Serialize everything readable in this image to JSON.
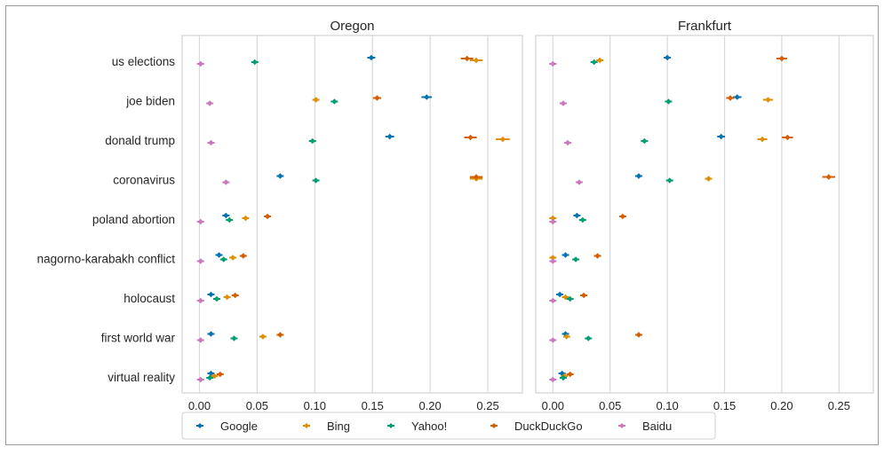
{
  "chart_data": [
    {
      "type": "scatter",
      "title": "Oregon",
      "xlabel": "",
      "ylabel": "",
      "xlim": [
        -0.015,
        0.28
      ],
      "xticks": [
        "0.00",
        "0.05",
        "0.10",
        "0.15",
        "0.20",
        "0.25"
      ],
      "grid": "vertical",
      "categories": [
        "us elections",
        "joe biden",
        "donald trump",
        "coronavirus",
        "poland abortion",
        "nagorno-karabakh conflict",
        "holocaust",
        "first world war",
        "virtual reality"
      ],
      "series": [
        {
          "name": "Google",
          "color": "#0173b2",
          "values": [
            0.149,
            0.197,
            0.165,
            0.07,
            0.023,
            0.017,
            0.01,
            0.01,
            0.01
          ]
        },
        {
          "name": "Bing",
          "color": "#de8f05",
          "values": [
            0.24,
            0.101,
            0.263,
            0.24,
            0.04,
            0.029,
            0.024,
            0.055,
            0.013
          ]
        },
        {
          "name": "Yahoo!",
          "color": "#029e73",
          "values": [
            0.048,
            0.117,
            0.098,
            0.101,
            0.026,
            0.021,
            0.015,
            0.03,
            0.009
          ]
        },
        {
          "name": "DuckDuckGo",
          "color": "#d55e00",
          "values": [
            0.232,
            0.154,
            0.235,
            0.24,
            0.059,
            0.038,
            0.031,
            0.07,
            0.018
          ]
        },
        {
          "name": "Baidu",
          "color": "#cc78bc",
          "values": [
            0.001,
            0.009,
            0.01,
            0.023,
            0.001,
            0.001,
            0.001,
            0.001,
            0.001
          ]
        }
      ]
    },
    {
      "type": "scatter",
      "title": "Frankfurt",
      "xlabel": "",
      "ylabel": "",
      "xlim": [
        -0.015,
        0.28
      ],
      "xticks": [
        "0.00",
        "0.05",
        "0.10",
        "0.15",
        "0.20",
        "0.25"
      ],
      "grid": "vertical",
      "categories": [
        "us elections",
        "joe biden",
        "donald trump",
        "coronavirus",
        "poland abortion",
        "nagorno-karabakh conflict",
        "holocaust",
        "first world war",
        "virtual reality"
      ],
      "series": [
        {
          "name": "Google",
          "color": "#0173b2",
          "values": [
            0.1,
            0.161,
            0.147,
            0.075,
            0.021,
            0.011,
            0.006,
            0.011,
            0.008
          ]
        },
        {
          "name": "Bing",
          "color": "#de8f05",
          "values": [
            0.041,
            0.188,
            0.183,
            0.136,
            0.0,
            0.0,
            0.011,
            0.012,
            0.01
          ]
        },
        {
          "name": "Yahoo!",
          "color": "#029e73",
          "values": [
            0.036,
            0.101,
            0.08,
            0.102,
            0.026,
            0.02,
            0.015,
            0.031,
            0.009
          ]
        },
        {
          "name": "DuckDuckGo",
          "color": "#d55e00",
          "values": [
            0.2,
            0.155,
            0.205,
            0.241,
            0.061,
            0.039,
            0.027,
            0.075,
            0.015
          ]
        },
        {
          "name": "Baidu",
          "color": "#cc78bc",
          "values": [
            0.0,
            0.009,
            0.013,
            0.023,
            0.0,
            0.0,
            0.0,
            0.0,
            0.0
          ]
        }
      ]
    }
  ],
  "legend": {
    "placement": "bottom",
    "items": [
      {
        "name": "Google",
        "color": "#0173b2"
      },
      {
        "name": "Bing",
        "color": "#de8f05"
      },
      {
        "name": "Yahoo!",
        "color": "#029e73"
      },
      {
        "name": "DuckDuckGo",
        "color": "#d55e00"
      },
      {
        "name": "Baidu",
        "color": "#cc78bc"
      }
    ]
  }
}
